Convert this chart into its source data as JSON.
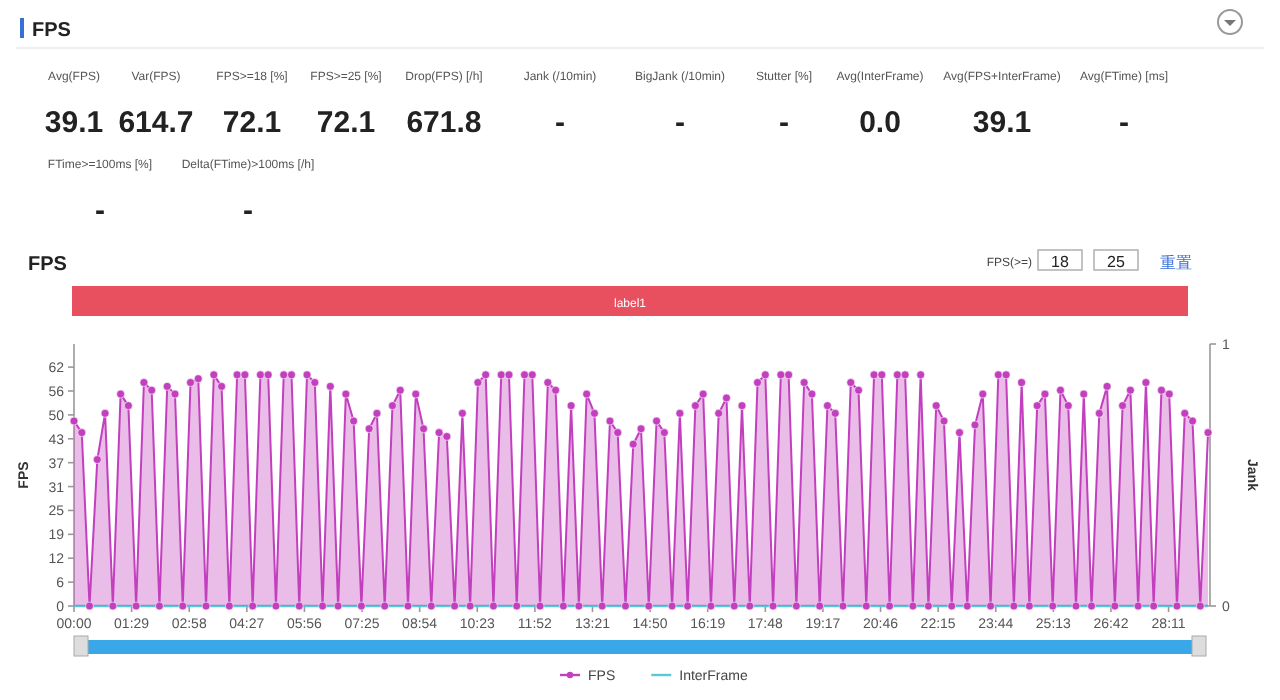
{
  "chart_data": [
    {
      "type": "other",
      "title": "FPS",
      "annotations": [
        "Avg(FPS)",
        "39.1",
        "Var(FPS)",
        "614.7",
        "FPS>=18 [%]",
        "72.1",
        "FPS>=25 [%]",
        "72.1",
        "Drop(FPS) [/h]",
        "671.8",
        "Jank (/10min)",
        "-",
        "BigJank (/10min)",
        "-",
        "Stutter [%]",
        "-",
        "Avg(InterFrame)",
        "0.0",
        "Avg(FPS+InterFrame)",
        "39.1",
        "Avg(FTime) [ms]",
        "-",
        "FTime>=100ms [%]",
        "-",
        "Delta(FTime)>100ms [/h]",
        "-"
      ]
    },
    {
      "type": "area",
      "title": "FPS",
      "ylabel": "FPS",
      "y2label": "Jank",
      "annotations": [
        "FPS(>=)",
        "18",
        "25",
        "重置",
        "label1"
      ],
      "x": [
        0,
        12,
        24,
        36,
        48,
        60,
        72,
        84,
        96,
        108,
        120,
        132,
        144,
        156,
        168,
        180,
        192,
        204,
        216,
        228,
        240,
        252,
        264,
        276,
        288,
        300,
        312,
        324,
        336,
        348,
        360,
        372,
        384,
        396,
        408,
        420,
        432,
        444,
        456,
        468,
        480,
        492,
        504,
        516,
        528,
        540,
        552,
        564,
        576,
        588,
        600,
        612,
        624,
        636,
        648,
        660,
        672,
        684,
        696,
        708,
        720,
        732,
        744,
        756,
        768,
        780,
        792,
        804,
        816,
        828,
        840,
        852,
        864,
        876,
        888,
        900,
        912,
        924,
        936,
        948,
        960,
        972,
        984,
        996,
        1008,
        1020,
        1032,
        1044,
        1056,
        1068,
        1080,
        1092,
        1104,
        1116,
        1128,
        1140,
        1152,
        1164,
        1176,
        1188,
        1200,
        1212,
        1224,
        1236,
        1248,
        1260,
        1272,
        1284,
        1296,
        1308,
        1320,
        1332,
        1344,
        1356,
        1368,
        1380,
        1392,
        1404,
        1416,
        1428,
        1440,
        1452,
        1464,
        1476,
        1488,
        1500,
        1512,
        1524,
        1536,
        1548,
        1560,
        1572,
        1584,
        1596,
        1608,
        1620,
        1632,
        1644,
        1656,
        1668,
        1680,
        1692,
        1704,
        1716,
        1728,
        1740,
        1752
      ],
      "series": [
        {
          "name": "FPS",
          "color": "#c23fbe",
          "values": [
            48,
            45,
            0,
            38,
            50,
            0,
            55,
            52,
            0,
            58,
            56,
            0,
            57,
            55,
            0,
            58,
            59,
            0,
            60,
            57,
            0,
            60,
            60,
            0,
            60,
            60,
            0,
            60,
            60,
            0,
            60,
            58,
            0,
            57,
            0,
            55,
            48,
            0,
            46,
            50,
            0,
            52,
            56,
            0,
            55,
            46,
            0,
            45,
            44,
            0,
            50,
            0,
            58,
            60,
            0,
            60,
            60,
            0,
            60,
            60,
            0,
            58,
            56,
            0,
            52,
            0,
            55,
            50,
            0,
            48,
            45,
            0,
            42,
            46,
            0,
            48,
            45,
            0,
            50,
            0,
            52,
            55,
            0,
            50,
            54,
            0,
            52,
            0,
            58,
            60,
            0,
            60,
            60,
            0,
            58,
            55,
            0,
            52,
            50,
            0,
            58,
            56,
            0,
            60,
            60,
            0,
            60,
            60,
            0,
            60,
            0,
            52,
            48,
            0,
            45,
            0,
            47,
            55,
            0,
            60,
            60,
            0,
            58,
            0,
            52,
            55,
            0,
            56,
            52,
            0,
            55,
            0,
            50,
            57,
            0,
            52,
            56,
            0,
            58,
            0,
            56,
            55,
            0,
            50,
            48,
            0,
            45
          ]
        },
        {
          "name": "InterFrame",
          "color": "#5bc8d8",
          "type": "line",
          "marker": "none",
          "values": [
            0,
            0,
            0,
            0,
            0,
            0,
            0,
            0,
            0,
            0,
            0,
            0,
            0,
            0,
            0,
            0,
            0,
            0,
            0,
            0,
            0,
            0,
            0,
            0,
            0,
            0,
            0,
            0,
            0,
            0,
            0,
            0,
            0,
            0,
            0,
            0,
            0,
            0,
            0,
            0,
            0,
            0,
            0,
            0,
            0,
            0,
            0,
            0,
            0,
            0,
            0,
            0,
            0,
            0,
            0,
            0,
            0,
            0,
            0,
            0,
            0,
            0,
            0,
            0,
            0,
            0,
            0,
            0,
            0,
            0,
            0,
            0,
            0,
            0,
            0,
            0,
            0,
            0,
            0,
            0,
            0,
            0,
            0,
            0,
            0,
            0,
            0,
            0,
            0,
            0,
            0,
            0,
            0,
            0,
            0,
            0,
            0,
            0,
            0,
            0,
            0,
            0,
            0,
            0,
            0,
            0,
            0,
            0,
            0,
            0,
            0,
            0,
            0,
            0,
            0,
            0,
            0,
            0,
            0,
            0,
            0,
            0,
            0,
            0,
            0,
            0,
            0,
            0,
            0,
            0,
            0,
            0,
            0,
            0,
            0,
            0,
            0,
            0,
            0,
            0,
            0,
            0,
            0,
            0,
            0,
            0,
            0
          ]
        }
      ],
      "xlim": [
        0,
        1755
      ],
      "xticks": [
        {
          "value": 0,
          "label": "00:00"
        },
        {
          "value": 89,
          "label": "01:29"
        },
        {
          "value": 178,
          "label": "02:58"
        },
        {
          "value": 267,
          "label": "04:27"
        },
        {
          "value": 356,
          "label": "05:56"
        },
        {
          "value": 445,
          "label": "07:25"
        },
        {
          "value": 534,
          "label": "08:54"
        },
        {
          "value": 623,
          "label": "10:23"
        },
        {
          "value": 712,
          "label": "11:52"
        },
        {
          "value": 801,
          "label": "13:21"
        },
        {
          "value": 890,
          "label": "14:50"
        },
        {
          "value": 979,
          "label": "16:19"
        },
        {
          "value": 1068,
          "label": "17:48"
        },
        {
          "value": 1157,
          "label": "19:17"
        },
        {
          "value": 1246,
          "label": "20:46"
        },
        {
          "value": 1335,
          "label": "22:15"
        },
        {
          "value": 1424,
          "label": "23:44"
        },
        {
          "value": 1513,
          "label": "25:13"
        },
        {
          "value": 1602,
          "label": "26:42"
        },
        {
          "value": 1691,
          "label": "28:11"
        }
      ],
      "ylim": [
        0,
        68
      ],
      "yticks": [
        0,
        {
          "value": 6.2,
          "label": "6"
        },
        {
          "value": 12.4,
          "label": "12"
        },
        {
          "value": 18.6,
          "label": "19"
        },
        {
          "value": 24.8,
          "label": "25"
        },
        31,
        {
          "value": 37.2,
          "label": "37"
        },
        {
          "value": 43.4,
          "label": "43"
        },
        {
          "value": 49.6,
          "label": "50"
        },
        {
          "value": 55.8,
          "label": "56"
        },
        62
      ],
      "y2lim": [
        0,
        1
      ],
      "y2ticks": [
        0,
        1
      ],
      "marker": "circle",
      "legend": "bottom",
      "grid": false
    }
  ]
}
